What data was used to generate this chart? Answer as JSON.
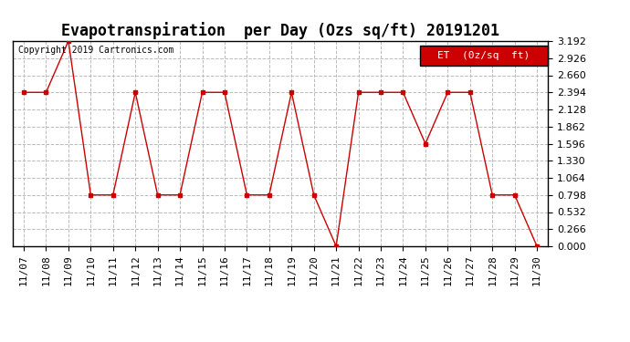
{
  "title": "Evapotranspiration  per Day (Ozs sq/ft) 20191201",
  "copyright_text": "Copyright 2019 Cartronics.com",
  "legend_label": "ET  (0z/sq  ft)",
  "x_labels": [
    "11/07",
    "11/08",
    "11/09",
    "11/10",
    "11/11",
    "11/12",
    "11/13",
    "11/14",
    "11/15",
    "11/16",
    "11/17",
    "11/18",
    "11/19",
    "11/20",
    "11/21",
    "11/22",
    "11/23",
    "11/24",
    "11/25",
    "11/26",
    "11/27",
    "11/28",
    "11/29",
    "11/30"
  ],
  "y_values": [
    2.394,
    2.394,
    3.192,
    0.798,
    0.798,
    2.394,
    0.798,
    0.798,
    2.394,
    2.394,
    0.798,
    0.798,
    2.394,
    0.798,
    0.0,
    2.394,
    2.394,
    2.394,
    1.596,
    2.394,
    2.394,
    0.798,
    0.798,
    0.0
  ],
  "ylim": [
    0.0,
    3.192
  ],
  "yticks": [
    0.0,
    0.266,
    0.532,
    0.798,
    1.064,
    1.33,
    1.596,
    1.862,
    2.128,
    2.394,
    2.66,
    2.926,
    3.192
  ],
  "line_color": "#cc0000",
  "marker_color": "#cc0000",
  "legend_bg": "#cc0000",
  "legend_text_color": "#ffffff",
  "background_color": "#ffffff",
  "grid_color": "#bbbbbb",
  "title_fontsize": 12,
  "copyright_fontsize": 7,
  "tick_fontsize": 8,
  "legend_fontsize": 8
}
